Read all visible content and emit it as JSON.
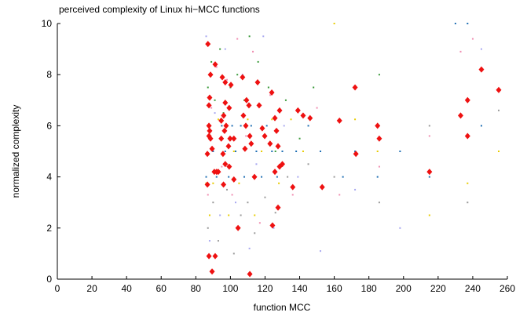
{
  "chart_data": {
    "type": "scatter",
    "title": "perceived complexity of Linux hi−MCC functions",
    "x_label": "function MCC",
    "y_label": "normalized complexity",
    "xlim": [
      0,
      260
    ],
    "ylim": [
      0,
      10
    ],
    "xticks": [
      0,
      20,
      40,
      60,
      80,
      100,
      120,
      140,
      160,
      180,
      200,
      220,
      240,
      260
    ],
    "yticks": [
      0,
      2,
      4,
      6,
      8,
      10
    ],
    "series": [
      {
        "color": "#1f6fb4",
        "marker": "dot",
        "x": [
          86,
          88,
          90,
          92,
          95,
          97,
          99,
          101,
          103,
          106,
          108,
          112,
          115,
          118,
          121,
          124,
          127,
          130,
          138,
          145,
          152,
          165,
          172,
          185,
          198,
          215,
          230,
          237,
          245
        ],
        "y": [
          4,
          6,
          5,
          4,
          6,
          5,
          4,
          6,
          5,
          6,
          4,
          6,
          5,
          4,
          6,
          5,
          4,
          5,
          5,
          6,
          5,
          4,
          5,
          4,
          5,
          4,
          10,
          10,
          6
        ]
      },
      {
        "color": "#3a9a3a",
        "marker": "dot",
        "x": [
          87,
          89,
          91,
          94,
          96,
          100,
          104,
          108,
          111,
          116,
          122,
          126,
          132,
          140,
          148,
          172,
          186,
          237
        ],
        "y": [
          7.5,
          8.5,
          7,
          9,
          6.5,
          7.5,
          8,
          7,
          9.5,
          8.5,
          7.5,
          5,
          7,
          5.5,
          7.5,
          7.5,
          8,
          7
        ]
      },
      {
        "color": "#e8cc00",
        "marker": "dot",
        "x": [
          86,
          88,
          90,
          93,
          96,
          99,
          102,
          105,
          110,
          114,
          118,
          124,
          128,
          135,
          142,
          160,
          172,
          185,
          215,
          237,
          255
        ],
        "y": [
          3.75,
          2.5,
          3.75,
          6.25,
          3.75,
          2.5,
          5,
          3.75,
          6.25,
          2.5,
          5,
          6.25,
          3.75,
          6.25,
          5,
          10,
          6.25,
          5,
          2.5,
          3.75,
          5
        ]
      },
      {
        "color": "#f08cb0",
        "marker": "dot",
        "x": [
          87,
          89,
          92,
          95,
          98,
          101,
          104,
          109,
          113,
          117,
          123,
          129,
          136,
          150,
          163,
          186,
          215,
          233,
          240
        ],
        "y": [
          3.3,
          6.7,
          8.3,
          4.4,
          7.8,
          3.3,
          9.4,
          5.6,
          8.9,
          2.2,
          7.2,
          4.4,
          3.3,
          6.7,
          3.3,
          4.4,
          5.6,
          8.9,
          9.4
        ]
      },
      {
        "color": "#a8a8f0",
        "marker": "dot",
        "x": [
          86,
          88,
          91,
          94,
          97,
          100,
          103,
          107,
          111,
          115,
          119,
          125,
          131,
          139,
          152,
          172,
          198,
          245
        ],
        "y": [
          9.5,
          1.5,
          6.5,
          2.5,
          9,
          5.5,
          3,
          8,
          1.2,
          4.5,
          9.5,
          2,
          6,
          4,
          1.1,
          3.5,
          2,
          9
        ]
      },
      {
        "color": "#999999",
        "marker": "dot",
        "x": [
          87,
          90,
          93,
          98,
          102,
          106,
          110,
          114,
          120,
          126,
          133,
          145,
          160,
          186,
          215,
          237,
          255
        ],
        "y": [
          2,
          3,
          1.5,
          3.5,
          1,
          2.5,
          3,
          1.8,
          3.2,
          2.6,
          4,
          4.5,
          4,
          3,
          6,
          3,
          6.6
        ]
      },
      {
        "color": "#ee1111",
        "marker": "diamond",
        "x": [
          87,
          88.5,
          91.2,
          88,
          87.6,
          87.6,
          88,
          87.6,
          88.5,
          86.7,
          89.4,
          86.7,
          92,
          90.7,
          87.6,
          91.2,
          89.4,
          95.3,
          97,
          100.3,
          97,
          99.3,
          96.1,
          94.7,
          97.5,
          96.6,
          99.8,
          94.7,
          98.9,
          95.7,
          97,
          99.3,
          93,
          96,
          102,
          102,
          104.4,
          107,
          109.3,
          110.7,
          107.5,
          108.9,
          111.2,
          112,
          108.4,
          113.9,
          111.2,
          115.7,
          116.6,
          118.4,
          119.8,
          123.9,
          122.9,
          127.5,
          126.6,
          125.7,
          128.4,
          125.7,
          128.4,
          127.5,
          124.3,
          130,
          136,
          139,
          142,
          146,
          153,
          163,
          172,
          172.5,
          185,
          186,
          215,
          233,
          237,
          237,
          245,
          255
        ],
        "y": [
          9.2,
          8,
          8.4,
          7.1,
          6.8,
          6,
          5.8,
          5.6,
          5.5,
          4.9,
          5.1,
          3.7,
          4.2,
          4.2,
          0.9,
          0.9,
          0.3,
          7.9,
          7.7,
          7.6,
          6.9,
          6.7,
          6.4,
          6.2,
          6,
          5.8,
          5.5,
          5.5,
          5.2,
          4.9,
          4.5,
          4.4,
          4.2,
          3.7,
          3.9,
          5.5,
          2,
          7.9,
          7,
          6.8,
          6.4,
          6,
          5.6,
          5.3,
          5.1,
          4,
          0.2,
          7.7,
          6.8,
          5.9,
          5.6,
          7.3,
          5.3,
          5.2,
          5.8,
          6.3,
          6.6,
          4.2,
          4.4,
          2.8,
          2.1,
          4.5,
          3.6,
          6.6,
          6.4,
          6.3,
          3.6,
          6.2,
          7.5,
          4.9,
          6,
          5.5,
          4.2,
          6.4,
          7,
          5.6,
          8.2,
          7.4
        ]
      }
    ]
  }
}
